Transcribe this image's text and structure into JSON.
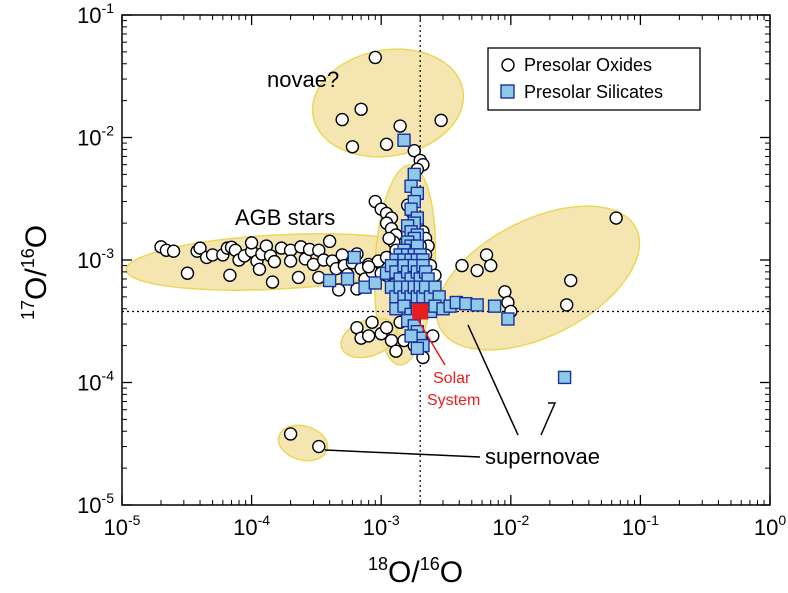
{
  "chart_data": {
    "type": "scatter",
    "x_scale": "log",
    "y_scale": "log",
    "xlim": [
      1e-05,
      1
    ],
    "ylim": [
      1e-05,
      0.1
    ],
    "x_ticks": [
      {
        "value": 1e-05,
        "base": "10",
        "exp": "-5"
      },
      {
        "value": 0.0001,
        "base": "10",
        "exp": "-4"
      },
      {
        "value": 0.001,
        "base": "10",
        "exp": "-3"
      },
      {
        "value": 0.01,
        "base": "10",
        "exp": "-2"
      },
      {
        "value": 0.1,
        "base": "10",
        "exp": "-1"
      },
      {
        "value": 1,
        "base": "10",
        "exp": "0"
      }
    ],
    "y_ticks": [
      {
        "value": 1e-05,
        "base": "10",
        "exp": "-5"
      },
      {
        "value": 0.0001,
        "base": "10",
        "exp": "-4"
      },
      {
        "value": 0.001,
        "base": "10",
        "exp": "-3"
      },
      {
        "value": 0.01,
        "base": "10",
        "exp": "-2"
      },
      {
        "value": 0.1,
        "base": "10",
        "exp": "-1"
      }
    ],
    "xlabel": {
      "sup": "18",
      "main1": "O/",
      "sup2": "16",
      "main2": "O"
    },
    "ylabel": {
      "sup": "17",
      "main1": "O/",
      "sup2": "16",
      "main2": "O"
    },
    "reference_lines": {
      "solar_x": 0.002,
      "solar_y": 0.00038
    },
    "legend": {
      "position": "top-right",
      "entries": [
        {
          "label": "Presolar Oxides",
          "marker": "circle"
        },
        {
          "label": "Presolar Silicates",
          "marker": "square"
        }
      ]
    },
    "colors": {
      "oxide_fill": "#ffffff",
      "oxide_stroke": "#000000",
      "silicate_fill": "#8ec9e8",
      "silicate_stroke": "#1a2fa0",
      "region_fill": "#f4e3a8",
      "region_stroke": "#e8d34a",
      "solar": "#e81e1e"
    },
    "annotations": [
      {
        "text": "novae?"
      },
      {
        "text": "AGB stars"
      },
      {
        "text": "supernovae"
      },
      {
        "text1": "Solar",
        "text2": "System"
      }
    ],
    "series": [
      {
        "name": "Presolar Oxides",
        "marker": "circle",
        "points": [
          [
            0.0009,
            0.045
          ],
          [
            0.0007,
            0.017
          ],
          [
            0.0005,
            0.014
          ],
          [
            0.0006,
            0.0084
          ],
          [
            0.0011,
            0.0088
          ],
          [
            0.0014,
            0.0124
          ],
          [
            0.0029,
            0.0138
          ],
          [
            0.0018,
            0.0078
          ],
          [
            0.002,
            0.0065
          ],
          [
            0.0021,
            0.006
          ],
          [
            0.0019,
            0.0055
          ],
          [
            2e-05,
            0.00128
          ],
          [
            2.2e-05,
            0.0012
          ],
          [
            2.5e-05,
            0.00118
          ],
          [
            3.2e-05,
            0.00078
          ],
          [
            3.8e-05,
            0.00118
          ],
          [
            4e-05,
            0.00125
          ],
          [
            4.5e-05,
            0.00105
          ],
          [
            5e-05,
            0.0011
          ],
          [
            6e-05,
            0.0011
          ],
          [
            6.5e-05,
            0.00125
          ],
          [
            7e-05,
            0.00127
          ],
          [
            7.5e-05,
            0.0012
          ],
          [
            8e-05,
            0.001
          ],
          [
            8.8e-05,
            0.00108
          ],
          [
            0.0001,
            0.00118
          ],
          [
            0.0001,
            0.00138
          ],
          [
            0.00011,
            0.00098
          ],
          [
            0.00012,
            0.00112
          ],
          [
            0.00013,
            0.0013
          ],
          [
            0.00014,
            0.00108
          ],
          [
            0.00015,
            0.00097
          ],
          [
            0.00017,
            0.00125
          ],
          [
            0.0002,
            0.0012
          ],
          [
            0.0002,
            0.00098
          ],
          [
            0.00024,
            0.00128
          ],
          [
            0.00026,
            0.00102
          ],
          [
            0.00028,
            0.00122
          ],
          [
            0.0003,
            0.00092
          ],
          [
            0.00033,
            0.0012
          ],
          [
            0.00036,
            0.001
          ],
          [
            0.0004,
            0.00142
          ],
          [
            0.00042,
            0.00098
          ],
          [
            0.00045,
            0.00085
          ],
          [
            0.0005,
            0.0011
          ],
          [
            0.00052,
            0.0009
          ],
          [
            0.00055,
            0.00076
          ],
          [
            0.0006,
            0.00095
          ],
          [
            0.00065,
            0.00112
          ],
          [
            0.0007,
            0.00085
          ],
          [
            0.00075,
            0.0007
          ],
          [
            0.0008,
            0.00092
          ],
          [
            0.00085,
            0.0008
          ],
          [
            0.0009,
            0.00065
          ],
          [
            0.00095,
            0.00098
          ],
          [
            0.001,
            0.00078
          ],
          [
            0.0011,
            0.00075
          ],
          [
            6.8e-05,
            0.00075
          ],
          [
            0.000115,
            0.00084
          ],
          [
            0.000145,
            0.00066
          ],
          [
            0.00023,
            0.00072
          ],
          [
            0.00033,
            0.00072
          ],
          [
            0.00047,
            0.00057
          ],
          [
            0.00065,
            0.00058
          ],
          [
            0.0008,
            0.00088
          ],
          [
            0.0011,
            0.00105
          ],
          [
            0.0009,
            0.003
          ],
          [
            0.001,
            0.0026
          ],
          [
            0.0011,
            0.0024
          ],
          [
            0.0012,
            0.0022
          ],
          [
            0.0011,
            0.002
          ],
          [
            0.0012,
            0.0018
          ],
          [
            0.0013,
            0.0016
          ],
          [
            0.00125,
            0.0014
          ],
          [
            0.0013,
            0.0012
          ],
          [
            0.0014,
            0.0011
          ],
          [
            0.00115,
            0.0015
          ],
          [
            0.0016,
            0.0028
          ],
          [
            0.0017,
            0.0025
          ],
          [
            0.0018,
            0.0022
          ],
          [
            0.0019,
            0.0019
          ],
          [
            0.0021,
            0.0017
          ],
          [
            0.0022,
            0.0015
          ],
          [
            0.0023,
            0.0013
          ],
          [
            0.002,
            0.0013
          ],
          [
            0.0022,
            0.0011
          ],
          [
            0.0024,
            0.0009
          ],
          [
            0.0026,
            0.00075
          ],
          [
            0.00065,
            0.00028
          ],
          [
            0.0007,
            0.00023
          ],
          [
            0.0008,
            0.00024
          ],
          [
            0.00085,
            0.00031
          ],
          [
            0.001,
            0.00025
          ],
          [
            0.0011,
            0.00028
          ],
          [
            0.0012,
            0.00022
          ],
          [
            0.0013,
            0.00018
          ],
          [
            0.0015,
            0.00022
          ],
          [
            0.0018,
            0.0002
          ],
          [
            0.0021,
            0.00016
          ],
          [
            0.0025,
            0.00024
          ],
          [
            0.0014,
            0.00031
          ],
          [
            0.0016,
            0.00033
          ],
          [
            0.0042,
            0.0009
          ],
          [
            0.0055,
            0.00082
          ],
          [
            0.0065,
            0.0011
          ],
          [
            0.007,
            0.0009
          ],
          [
            0.009,
            0.00055
          ],
          [
            0.0095,
            0.00045
          ],
          [
            0.01,
            0.00038
          ],
          [
            0.027,
            0.00043
          ],
          [
            0.029,
            0.00068
          ],
          [
            0.065,
            0.0022
          ],
          [
            0.0002,
            3.8e-05
          ],
          [
            0.00033,
            3e-05
          ]
        ]
      },
      {
        "name": "Presolar Silicates",
        "marker": "square",
        "points": [
          [
            0.0015,
            0.0095
          ],
          [
            0.0018,
            0.005
          ],
          [
            0.0017,
            0.004
          ],
          [
            0.0019,
            0.0035
          ],
          [
            0.0018,
            0.003
          ],
          [
            0.0017,
            0.0026
          ],
          [
            0.0019,
            0.0022
          ],
          [
            0.0018,
            0.002
          ],
          [
            0.0016,
            0.0019
          ],
          [
            0.0017,
            0.0017
          ],
          [
            0.0019,
            0.0016
          ],
          [
            0.0018,
            0.0015
          ],
          [
            0.0016,
            0.0014
          ],
          [
            0.0017,
            0.0013
          ],
          [
            0.0019,
            0.0013
          ],
          [
            0.0015,
            0.0012
          ],
          [
            0.0014,
            0.0011
          ],
          [
            0.0016,
            0.0011
          ],
          [
            0.0018,
            0.0011
          ],
          [
            0.002,
            0.0011
          ],
          [
            0.0013,
            0.001
          ],
          [
            0.0015,
            0.001
          ],
          [
            0.0017,
            0.001
          ],
          [
            0.0019,
            0.001
          ],
          [
            0.0021,
            0.001
          ],
          [
            0.0004,
            0.00068
          ],
          [
            0.00055,
            0.0007
          ],
          [
            0.00062,
            0.00105
          ],
          [
            0.00075,
            0.0006
          ],
          [
            0.0009,
            0.00065
          ],
          [
            0.0011,
            0.00078
          ],
          [
            0.0012,
            0.0009
          ],
          [
            0.0013,
            0.0008
          ],
          [
            0.0014,
            0.0007
          ],
          [
            0.0015,
            0.0009
          ],
          [
            0.0016,
            0.0008
          ],
          [
            0.0017,
            0.0007
          ],
          [
            0.0018,
            0.0009
          ],
          [
            0.0019,
            0.0008
          ],
          [
            0.002,
            0.0007
          ],
          [
            0.0021,
            0.0009
          ],
          [
            0.0022,
            0.0008
          ],
          [
            0.0023,
            0.0007
          ],
          [
            0.0012,
            0.0006
          ],
          [
            0.0013,
            0.0005
          ],
          [
            0.0014,
            0.0006
          ],
          [
            0.0015,
            0.0005
          ],
          [
            0.0016,
            0.0006
          ],
          [
            0.0017,
            0.0005
          ],
          [
            0.0018,
            0.0006
          ],
          [
            0.0019,
            0.0005
          ],
          [
            0.002,
            0.0006
          ],
          [
            0.0021,
            0.0005
          ],
          [
            0.0022,
            0.0006
          ],
          [
            0.0024,
            0.0005
          ],
          [
            0.0026,
            0.0006
          ],
          [
            0.0028,
            0.0005
          ],
          [
            0.0013,
            0.0004
          ],
          [
            0.0015,
            0.00042
          ],
          [
            0.0017,
            0.00036
          ],
          [
            0.0019,
            0.0004
          ],
          [
            0.0022,
            0.0004
          ],
          [
            0.0024,
            0.00038
          ],
          [
            0.0026,
            0.00042
          ],
          [
            0.003,
            0.0004
          ],
          [
            0.0034,
            0.00042
          ],
          [
            0.0038,
            0.00045
          ],
          [
            0.0045,
            0.00044
          ],
          [
            0.0055,
            0.00043
          ],
          [
            0.0075,
            0.00042
          ],
          [
            0.0095,
            0.00033
          ],
          [
            0.0016,
            0.00032
          ],
          [
            0.0018,
            0.00029
          ],
          [
            0.0019,
            0.00026
          ],
          [
            0.002,
            0.00023
          ],
          [
            0.0021,
            0.0002
          ],
          [
            0.0019,
            0.00019
          ],
          [
            0.0017,
            0.00024
          ],
          [
            0.026,
            0.00011
          ]
        ]
      }
    ]
  }
}
